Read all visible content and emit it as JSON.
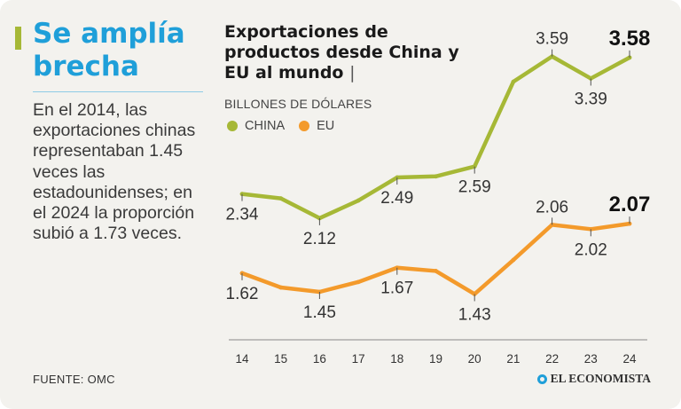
{
  "sidebar": {
    "headline": "Se amplía brecha",
    "summary": "En el 2014, las exportaciones chinas representaban 1.45 veces las estadounidenses; en el 2024 la proporción subió a 1.73 veces.",
    "source": "FUENTE:  OMC",
    "logo_text": "EL ECONOMISTA"
  },
  "colors": {
    "china": "#a6b836",
    "eu": "#f39a2b",
    "accent": "#a6b836",
    "headline": "#1f9fd9"
  },
  "chart_data": {
    "type": "line",
    "title": "Exportaciones de productos desde China y EU al mundo",
    "title_separator": "|",
    "ylabel": "BILLONES DE DÓLARES",
    "categories": [
      "14",
      "15",
      "16",
      "17",
      "18",
      "19",
      "20",
      "21",
      "22",
      "23",
      "24"
    ],
    "ylim": [
      1.2,
      3.7
    ],
    "series": [
      {
        "name": "CHINA",
        "values": [
          2.34,
          2.3,
          2.12,
          2.28,
          2.49,
          2.5,
          2.59,
          3.36,
          3.59,
          3.39,
          3.58
        ],
        "labeled": [
          {
            "i": 0,
            "text": "2.34",
            "pos": "below"
          },
          {
            "i": 2,
            "text": "2.12",
            "pos": "below"
          },
          {
            "i": 4,
            "text": "2.49",
            "pos": "below"
          },
          {
            "i": 6,
            "text": "2.59",
            "pos": "below"
          },
          {
            "i": 8,
            "text": "3.59",
            "pos": "above"
          },
          {
            "i": 9,
            "text": "3.39",
            "pos": "below"
          },
          {
            "i": 10,
            "text": "3.58",
            "pos": "above",
            "bold": true
          }
        ]
      },
      {
        "name": "EU",
        "values": [
          1.62,
          1.49,
          1.45,
          1.54,
          1.67,
          1.64,
          1.43,
          1.74,
          2.06,
          2.02,
          2.07
        ],
        "labeled": [
          {
            "i": 0,
            "text": "1.62",
            "pos": "below"
          },
          {
            "i": 2,
            "text": "1.45",
            "pos": "below"
          },
          {
            "i": 4,
            "text": "1.67",
            "pos": "below"
          },
          {
            "i": 6,
            "text": "1.43",
            "pos": "below"
          },
          {
            "i": 8,
            "text": "2.06",
            "pos": "above"
          },
          {
            "i": 9,
            "text": "2.02",
            "pos": "below"
          },
          {
            "i": 10,
            "text": "2.07",
            "pos": "above",
            "bold": true
          }
        ]
      }
    ]
  }
}
